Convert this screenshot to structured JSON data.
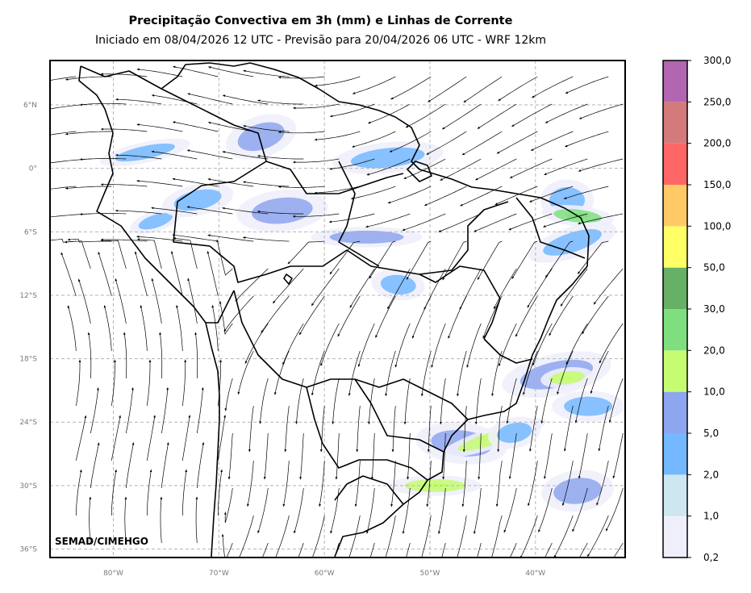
{
  "chart_data": {
    "type": "heatmap",
    "title": "Precipitação Convectiva em 3h (mm) e Linhas de Corrente",
    "subtitle": "Iniciado em 08/04/2026 12 UTC - Previsão para 20/04/2026 06 UTC - WRF 12km",
    "credit": "SEMAD/CIMEHGO",
    "xlim": [
      -86,
      -31.5
    ],
    "ylim": [
      -36.8,
      10.2
    ],
    "x_ticks": [
      {
        "value": -80,
        "label": "80°W"
      },
      {
        "value": -70,
        "label": "70°W"
      },
      {
        "value": -60,
        "label": "60°W"
      },
      {
        "value": -50,
        "label": "50°W"
      },
      {
        "value": -40,
        "label": "40°W"
      }
    ],
    "y_ticks": [
      {
        "value": 6,
        "label": "6°N"
      },
      {
        "value": 0,
        "label": "0°"
      },
      {
        "value": -6,
        "label": "6°S"
      },
      {
        "value": -12,
        "label": "12°S"
      },
      {
        "value": -18,
        "label": "18°S"
      },
      {
        "value": -24,
        "label": "24°S"
      },
      {
        "value": -30,
        "label": "30°S"
      },
      {
        "value": -36,
        "label": "36°S"
      }
    ],
    "grid": true,
    "colorbar": {
      "levels": [
        "0,2",
        "1,0",
        "2,0",
        "5,0",
        "10,0",
        "20,0",
        "30,0",
        "50,0",
        "100,0",
        "150,0",
        "200,0",
        "250,0",
        "300,0"
      ],
      "colors": [
        "#efeffc",
        "#cde6ef",
        "#74b8ff",
        "#8ea6ef",
        "#c6fc71",
        "#7fdf7f",
        "#67b167",
        "#ffff66",
        "#ffc966",
        "#ff6666",
        "#d47a7a",
        "#b266b2"
      ]
    },
    "precip_areas": [
      {
        "lon": -76,
        "lat": -5,
        "level": "2,0"
      },
      {
        "lon": -72,
        "lat": -3,
        "level": "2,0"
      },
      {
        "lon": -64,
        "lat": -4,
        "level": "5,0"
      },
      {
        "lon": -56,
        "lat": -6.5,
        "level": "5,0"
      },
      {
        "lon": -53,
        "lat": -11,
        "level": "2,0"
      },
      {
        "lon": -66,
        "lat": 3,
        "level": "5,0"
      },
      {
        "lon": -77,
        "lat": 1.5,
        "level": "2,0"
      },
      {
        "lon": -54,
        "lat": 1,
        "level": "2,0"
      },
      {
        "lon": -37,
        "lat": -3,
        "level": "2,0"
      },
      {
        "lon": -36,
        "lat": -4.5,
        "level": "20,0"
      },
      {
        "lon": -36.5,
        "lat": -7,
        "level": "2,0"
      },
      {
        "lon": -38,
        "lat": -19.5,
        "level": "5,0"
      },
      {
        "lon": -37,
        "lat": -19.8,
        "level": "10,0"
      },
      {
        "lon": -35,
        "lat": -22.5,
        "level": "2,0"
      },
      {
        "lon": -47,
        "lat": -26,
        "level": "5,0"
      },
      {
        "lon": -44,
        "lat": -25.5,
        "level": "10,0"
      },
      {
        "lon": -42,
        "lat": -25,
        "level": "2,0"
      },
      {
        "lon": -36,
        "lat": -30.5,
        "level": "5,0"
      },
      {
        "lon": -49.5,
        "lat": -30,
        "level": "10,0"
      }
    ]
  }
}
